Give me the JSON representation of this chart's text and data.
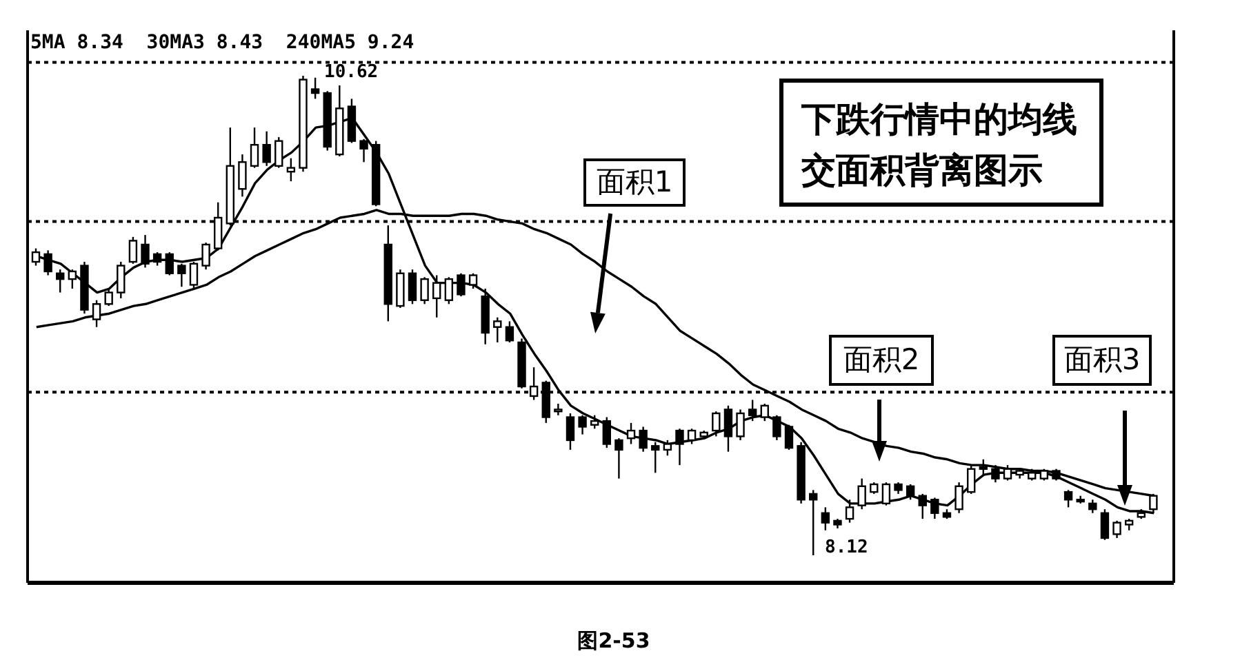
{
  "chart_data": {
    "type": "candlestick",
    "title": "下跌行情中的均线交面积背离图示",
    "color": "#000000",
    "categories": [
      null,
      null,
      null,
      null,
      null,
      null,
      null,
      null,
      null,
      null,
      null,
      null,
      null,
      null,
      null,
      null,
      null,
      null,
      null,
      null,
      null,
      null,
      null,
      null,
      null,
      null,
      null,
      null,
      null,
      null,
      null,
      null,
      null,
      null,
      null,
      null,
      null,
      null,
      null,
      null,
      null,
      null,
      null,
      null,
      null,
      null,
      null,
      null,
      null,
      null,
      null,
      null,
      null,
      null,
      null,
      null,
      null,
      null,
      null,
      null,
      null,
      null,
      null,
      null,
      null,
      null,
      null,
      null,
      null,
      null,
      null,
      null,
      null,
      null,
      null,
      null,
      null,
      null,
      null,
      null,
      null,
      null,
      null,
      null,
      null,
      null,
      null,
      null,
      null,
      null,
      null,
      null,
      null
    ],
    "ohlc": [
      [
        9.65,
        9.72,
        9.63,
        9.7
      ],
      [
        9.69,
        9.71,
        9.58,
        9.6
      ],
      [
        9.59,
        9.61,
        9.49,
        9.56
      ],
      [
        9.56,
        9.61,
        9.51,
        9.6
      ],
      [
        9.63,
        9.65,
        9.38,
        9.4
      ],
      [
        9.35,
        9.45,
        9.31,
        9.43
      ],
      [
        9.43,
        9.51,
        9.42,
        9.49
      ],
      [
        9.49,
        9.65,
        9.46,
        9.63
      ],
      [
        9.65,
        9.78,
        9.64,
        9.76
      ],
      [
        9.74,
        9.79,
        9.62,
        9.64
      ],
      [
        9.69,
        9.7,
        9.63,
        9.65
      ],
      [
        9.69,
        9.7,
        9.58,
        9.59
      ],
      [
        9.63,
        9.64,
        9.52,
        9.59
      ],
      [
        9.53,
        9.65,
        9.51,
        9.64
      ],
      [
        9.63,
        9.75,
        9.61,
        9.74
      ],
      [
        9.72,
        9.96,
        9.71,
        9.88
      ],
      [
        9.85,
        10.35,
        9.84,
        10.15
      ],
      [
        10.03,
        10.21,
        9.99,
        10.17
      ],
      [
        10.15,
        10.35,
        10.14,
        10.26
      ],
      [
        10.26,
        10.33,
        10.15,
        10.17
      ],
      [
        10.15,
        10.3,
        10.14,
        10.28
      ],
      [
        10.12,
        10.19,
        10.07,
        10.14
      ],
      [
        10.14,
        10.62,
        10.12,
        10.6
      ],
      [
        10.55,
        10.61,
        10.5,
        10.53
      ],
      [
        10.53,
        10.54,
        10.23,
        10.25
      ],
      [
        10.21,
        10.57,
        10.2,
        10.45
      ],
      [
        10.46,
        10.5,
        10.27,
        10.28
      ],
      [
        10.28,
        10.29,
        10.17,
        10.24
      ],
      [
        10.26,
        10.28,
        9.94,
        9.95
      ],
      [
        9.74,
        9.84,
        9.34,
        9.43
      ],
      [
        9.42,
        9.61,
        9.41,
        9.59
      ],
      [
        9.59,
        9.61,
        9.43,
        9.45
      ],
      [
        9.45,
        9.57,
        9.43,
        9.56
      ],
      [
        9.46,
        9.58,
        9.36,
        9.54
      ],
      [
        9.45,
        9.57,
        9.43,
        9.56
      ],
      [
        9.58,
        9.59,
        9.47,
        9.48
      ],
      [
        9.53,
        9.59,
        9.51,
        9.58
      ],
      [
        9.47,
        9.51,
        9.22,
        9.28
      ],
      [
        9.31,
        9.36,
        9.23,
        9.34
      ],
      [
        9.31,
        9.34,
        9.23,
        9.24
      ],
      [
        9.23,
        9.25,
        8.99,
        9.0
      ],
      [
        8.95,
        9.1,
        8.93,
        9.0
      ],
      [
        9.02,
        9.03,
        8.81,
        8.84
      ],
      [
        8.87,
        8.91,
        8.85,
        8.88
      ],
      [
        8.84,
        8.86,
        8.67,
        8.72
      ],
      [
        8.84,
        8.85,
        8.75,
        8.79
      ],
      [
        8.8,
        8.85,
        8.78,
        8.82
      ],
      [
        8.82,
        8.84,
        8.68,
        8.7
      ],
      [
        8.72,
        8.73,
        8.52,
        8.67
      ],
      [
        8.73,
        8.81,
        8.7,
        8.77
      ],
      [
        8.77,
        8.79,
        8.66,
        8.68
      ],
      [
        8.69,
        8.71,
        8.55,
        8.67
      ],
      [
        8.67,
        8.72,
        8.64,
        8.7
      ],
      [
        8.77,
        8.78,
        8.59,
        8.7
      ],
      [
        8.72,
        8.78,
        8.7,
        8.77
      ],
      [
        8.74,
        8.77,
        8.73,
        8.76
      ],
      [
        8.77,
        8.87,
        8.74,
        8.86
      ],
      [
        8.88,
        8.9,
        8.66,
        8.74
      ],
      [
        8.74,
        8.88,
        8.72,
        8.86
      ],
      [
        8.88,
        8.93,
        8.82,
        8.85
      ],
      [
        8.84,
        8.91,
        8.82,
        8.9
      ],
      [
        8.84,
        8.85,
        8.72,
        8.74
      ],
      [
        8.79,
        8.8,
        8.67,
        8.68
      ],
      [
        8.69,
        8.71,
        8.39,
        8.41
      ],
      [
        8.44,
        8.46,
        8.12,
        8.41
      ],
      [
        8.34,
        8.37,
        8.25,
        8.29
      ],
      [
        8.3,
        8.31,
        8.26,
        8.28
      ],
      [
        8.31,
        8.41,
        8.29,
        8.37
      ],
      [
        8.38,
        8.52,
        8.36,
        8.48
      ],
      [
        8.45,
        8.5,
        8.44,
        8.49
      ],
      [
        8.39,
        8.5,
        8.38,
        8.49
      ],
      [
        8.49,
        8.5,
        8.44,
        8.46
      ],
      [
        8.48,
        8.49,
        8.41,
        8.43
      ],
      [
        8.43,
        8.44,
        8.31,
        8.38
      ],
      [
        8.41,
        8.42,
        8.31,
        8.34
      ],
      [
        8.34,
        8.36,
        8.31,
        8.32
      ],
      [
        8.36,
        8.5,
        8.34,
        8.48
      ],
      [
        8.45,
        8.59,
        8.44,
        8.57
      ],
      [
        8.58,
        8.62,
        8.54,
        8.57
      ],
      [
        8.57,
        8.59,
        8.5,
        8.52
      ],
      [
        8.52,
        8.59,
        8.51,
        8.57
      ],
      [
        8.54,
        8.57,
        8.52,
        8.56
      ],
      [
        8.52,
        8.57,
        8.51,
        8.55
      ],
      [
        8.52,
        8.57,
        8.51,
        8.56
      ],
      [
        8.56,
        8.57,
        8.51,
        8.52
      ],
      [
        8.45,
        8.46,
        8.37,
        8.41
      ],
      [
        8.41,
        8.43,
        8.39,
        8.4
      ],
      [
        8.39,
        8.41,
        8.34,
        8.36
      ],
      [
        8.34,
        8.36,
        8.2,
        8.21
      ],
      [
        8.23,
        8.3,
        8.21,
        8.29
      ],
      [
        8.28,
        8.31,
        8.25,
        8.3
      ],
      [
        8.32,
        8.36,
        8.31,
        8.34
      ],
      [
        8.36,
        8.44,
        8.34,
        8.43
      ]
    ],
    "series": [
      {
        "type": "line",
        "color": "#000000",
        "values": [
          9.68,
          9.66,
          9.64,
          9.59,
          9.54,
          9.49,
          9.51,
          9.57,
          9.62,
          9.65,
          9.66,
          9.66,
          9.65,
          9.66,
          9.67,
          9.72,
          9.83,
          9.94,
          10.06,
          10.13,
          10.18,
          10.22,
          10.28,
          10.35,
          10.36,
          10.38,
          10.4,
          10.31,
          10.22,
          10.11,
          9.95,
          9.79,
          9.63,
          9.54,
          9.54,
          9.54,
          9.53,
          9.49,
          9.43,
          9.38,
          9.27,
          9.17,
          9.08,
          8.98,
          8.9,
          8.86,
          8.83,
          8.8,
          8.77,
          8.74,
          8.73,
          8.72,
          8.7,
          8.71,
          8.72,
          8.73,
          8.76,
          8.78,
          8.82,
          8.84,
          8.85,
          8.82,
          8.79,
          8.73,
          8.64,
          8.54,
          8.44,
          8.39,
          8.39,
          8.39,
          8.4,
          8.41,
          8.43,
          8.41,
          8.39,
          8.38,
          8.43,
          8.49,
          8.54,
          8.55,
          8.55,
          8.55,
          8.55,
          8.55,
          8.53,
          8.5,
          8.47,
          8.44,
          8.41,
          8.37,
          8.35,
          8.35,
          8.34
        ]
      },
      {
        "type": "line",
        "color": "#000000",
        "values": [
          9.31,
          9.32,
          9.33,
          9.34,
          9.36,
          9.37,
          9.38,
          9.4,
          9.42,
          9.43,
          9.45,
          9.47,
          9.49,
          9.51,
          9.53,
          9.57,
          9.6,
          9.64,
          9.68,
          9.71,
          9.74,
          9.77,
          9.8,
          9.82,
          9.85,
          9.88,
          9.89,
          9.9,
          9.92,
          9.9,
          9.9,
          9.89,
          9.89,
          9.89,
          9.89,
          9.9,
          9.9,
          9.89,
          9.87,
          9.86,
          9.85,
          9.82,
          9.8,
          9.77,
          9.74,
          9.69,
          9.65,
          9.6,
          9.56,
          9.52,
          9.47,
          9.43,
          9.36,
          9.29,
          9.25,
          9.21,
          9.17,
          9.12,
          9.06,
          9.01,
          8.98,
          8.95,
          8.92,
          8.88,
          8.85,
          8.82,
          8.78,
          8.76,
          8.73,
          8.71,
          8.69,
          8.68,
          8.66,
          8.65,
          8.63,
          8.62,
          8.6,
          8.59,
          8.59,
          8.58,
          8.57,
          8.57,
          8.56,
          8.56,
          8.55,
          8.53,
          8.51,
          8.49,
          8.47,
          8.46,
          8.45,
          8.44,
          8.43
        ]
      }
    ],
    "marker": "none",
    "ref_lines": [
      {
        "axis": "y",
        "value": 10.69,
        "color": "#000000",
        "line_style": "dotted"
      },
      {
        "axis": "y",
        "value": 9.86,
        "color": "#000000",
        "line_style": "dotted"
      },
      {
        "axis": "y",
        "value": 8.97,
        "color": "#000000",
        "line_style": "dotted"
      }
    ],
    "annotations": [
      "5MA 8.34  30MA3 8.43  240MA5 9.24",
      "10.62",
      "8.12",
      "面积1",
      "面积2",
      "面积3",
      "图2-53"
    ]
  }
}
